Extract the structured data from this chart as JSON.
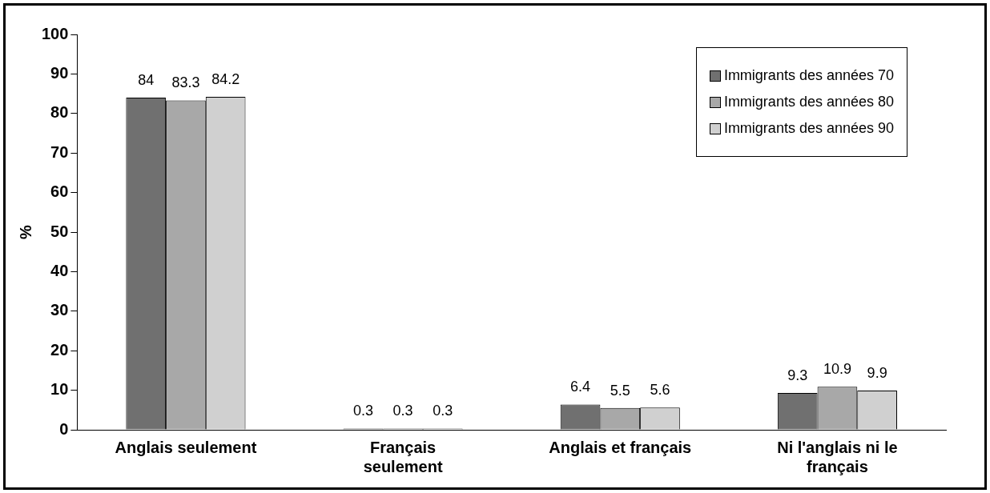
{
  "chart_data": {
    "type": "bar",
    "ylabel": "%",
    "categories": [
      "Anglais seulement",
      "Français seulement",
      "Anglais et français",
      "Ni l'anglais ni le français"
    ],
    "series": [
      {
        "name": "Immigrants des années 70",
        "color": "#707070",
        "values": [
          84,
          0.3,
          6.4,
          9.3
        ]
      },
      {
        "name": "Immigrants des années 80",
        "color": "#a8a8a8",
        "values": [
          83.3,
          0.3,
          5.5,
          10.9
        ]
      },
      {
        "name": "Immigrants des années 90",
        "color": "#d0d0d0",
        "values": [
          84.2,
          0.3,
          5.6,
          9.9
        ]
      }
    ],
    "ylim": [
      0,
      100
    ],
    "yticks": [
      0,
      10,
      20,
      30,
      40,
      50,
      60,
      70,
      80,
      90,
      100
    ],
    "grid": false,
    "legend": "top right",
    "data_labels": true
  }
}
